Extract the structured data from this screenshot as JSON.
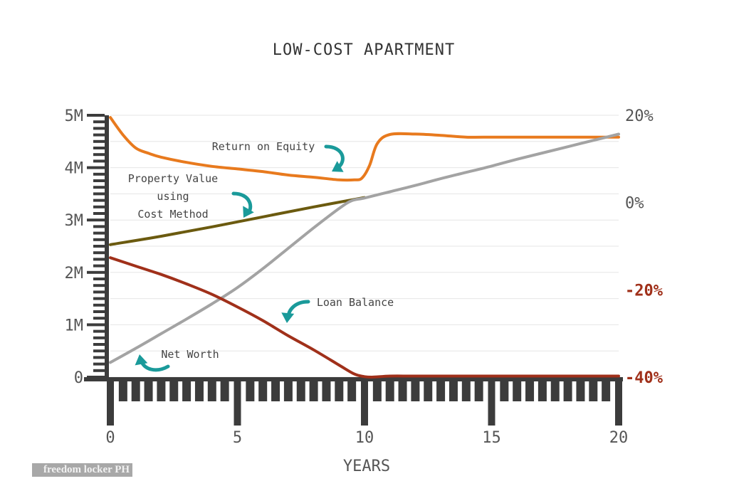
{
  "chart_data": {
    "type": "line",
    "title": "LOW-COST APARTMENT",
    "xlabel": "YEARS",
    "x_ticks": [
      "0",
      "5",
      "10",
      "15",
      "20"
    ],
    "xlim": [
      0,
      20
    ],
    "y_left": {
      "ticks": [
        "0",
        "1M",
        "2M",
        "3M",
        "4M",
        "5M"
      ],
      "ylim": [
        0,
        5000000
      ]
    },
    "y_right": {
      "ticks": [
        "20%",
        "0%",
        "-20%",
        "-40%"
      ],
      "ylim": [
        -40,
        20
      ]
    },
    "grid": true,
    "series": [
      {
        "name": "Return on Equity",
        "axis": "right",
        "color": "#e87a1e",
        "x": [
          0,
          0.5,
          1,
          1.5,
          2,
          3,
          4,
          5,
          6,
          7,
          8,
          9,
          9.6,
          9.9,
          10.2,
          10.5,
          11,
          12,
          13,
          14,
          15,
          16,
          17,
          18,
          19,
          20
        ],
        "values": [
          19.5,
          15.5,
          12.5,
          11.3,
          10.4,
          9.2,
          8.3,
          7.7,
          7.1,
          6.3,
          5.8,
          5.2,
          5.2,
          5.6,
          8.5,
          13.5,
          15.6,
          15.7,
          15.4,
          15.0,
          15.0,
          15.0,
          15.0,
          15.0,
          15.0,
          15.0
        ]
      },
      {
        "name": "Property Value using Cost Method",
        "axis": "left",
        "color": "#6b5a0f",
        "x": [
          0,
          2,
          4,
          6,
          8,
          10
        ],
        "values": [
          2530000,
          2690000,
          2870000,
          3060000,
          3250000,
          3430000
        ]
      },
      {
        "name": "Net Worth",
        "axis": "left",
        "color": "#a3a3a3",
        "x": [
          0,
          1,
          2,
          3,
          4,
          5,
          6,
          7,
          8,
          9,
          9.5,
          10,
          11,
          12,
          13,
          14,
          15,
          16,
          17,
          18,
          19,
          20
        ],
        "values": [
          280000,
          550000,
          830000,
          1110000,
          1400000,
          1710000,
          2070000,
          2460000,
          2850000,
          3220000,
          3370000,
          3420000,
          3540000,
          3660000,
          3790000,
          3910000,
          4030000,
          4160000,
          4280000,
          4400000,
          4520000,
          4640000
        ]
      },
      {
        "name": "Loan Balance",
        "axis": "left",
        "color": "#a0301a",
        "x": [
          0,
          1,
          2,
          3,
          4,
          5,
          6,
          7,
          8,
          9,
          9.6,
          10,
          10.3,
          11,
          12,
          14,
          16,
          18,
          20
        ],
        "values": [
          2280000,
          2120000,
          1960000,
          1780000,
          1580000,
          1340000,
          1080000,
          790000,
          520000,
          230000,
          60000,
          10000,
          0,
          20000,
          20000,
          20000,
          20000,
          20000,
          20000
        ]
      }
    ],
    "annotations": [
      {
        "text": "Return on Equity",
        "lines": [
          "Return on Equity"
        ]
      },
      {
        "text": "Property Value using Cost Method",
        "lines": [
          "Property Value",
          "using",
          "Cost Method"
        ]
      },
      {
        "text": "Loan Balance",
        "lines": [
          "Loan Balance"
        ]
      },
      {
        "text": "Net Worth",
        "lines": [
          "Net Worth"
        ]
      }
    ],
    "arrow_color": "#1a9a9a"
  },
  "watermark": {
    "text": "freedom locker PH"
  }
}
